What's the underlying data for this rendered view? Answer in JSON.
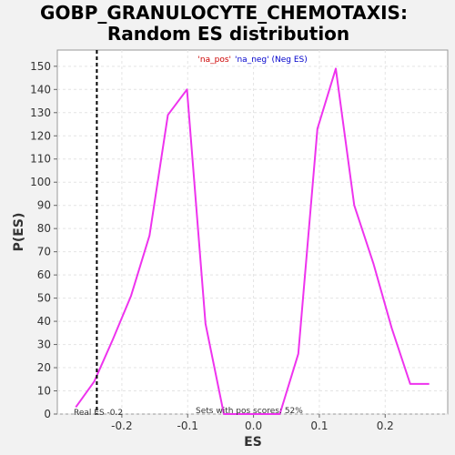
{
  "chart_data": {
    "type": "line",
    "title_line1": "GOBP_GRANULOCYTE_CHEMOTAXIS:",
    "title_line2": "Random ES distribution",
    "xlabel": "ES",
    "ylabel": "P(ES)",
    "xlim": [
      -0.298,
      0.295
    ],
    "ylim": [
      0,
      157
    ],
    "xticks": [
      -0.2,
      -0.1,
      0.0,
      0.1,
      0.2
    ],
    "xtick_labels": [
      "-0.2",
      "-0.1",
      "0.0",
      "0.1",
      "0.2"
    ],
    "yticks": [
      0,
      10,
      20,
      30,
      40,
      50,
      60,
      70,
      80,
      90,
      100,
      110,
      120,
      130,
      140,
      150
    ],
    "ytick_labels": [
      "0",
      "10",
      "20",
      "30",
      "40",
      "50",
      "60",
      "70",
      "80",
      "90",
      "100",
      "110",
      "120",
      "130",
      "140",
      "150"
    ],
    "grid": true,
    "series": [
      {
        "color": "#ee33ee",
        "x": [
          -0.27,
          -0.242,
          -0.214,
          -0.186,
          -0.158,
          -0.13,
          -0.101,
          -0.073,
          -0.045,
          -0.017,
          0.012,
          0.04,
          0.068,
          0.097,
          0.125,
          0.153,
          0.182,
          0.21,
          0.238,
          0.267
        ],
        "y": [
          3,
          14,
          32,
          51,
          77,
          129,
          140,
          39,
          0,
          0,
          0,
          0,
          26,
          123,
          149,
          90,
          65,
          37,
          13,
          13
        ]
      }
    ],
    "real_es": -0.238,
    "real_es_label": "Real ES -0.2",
    "legend_pos": "'na_pos'",
    "legend_neg": "'na_neg' (Neg ES)",
    "sets_note": "Sets with pos scores: 52%"
  }
}
